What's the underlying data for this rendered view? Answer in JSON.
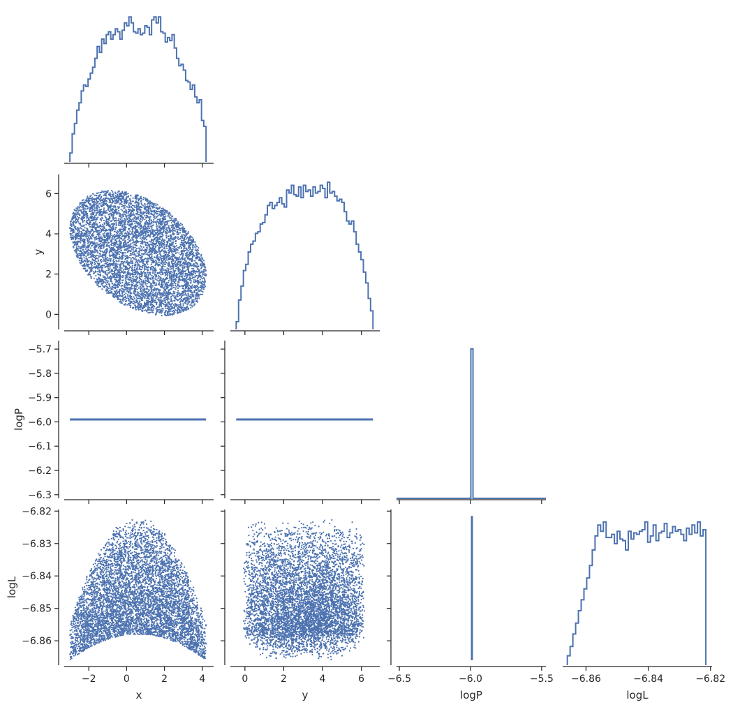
{
  "chart_data": {
    "type": "corner-pairplot",
    "variables": [
      "x",
      "y",
      "logP",
      "logL"
    ],
    "series_color": "#4c72b0",
    "axis_color": "#262626",
    "axes": {
      "x": {
        "label": "x",
        "range": [
          -3.3,
          4.6
        ],
        "ticks": [
          -2,
          0,
          2,
          4
        ],
        "tick_labels": [
          "−2",
          "0",
          "2",
          "4"
        ]
      },
      "y": {
        "label": "y",
        "range": [
          -0.75,
          6.95
        ],
        "ticks": [
          0,
          2,
          4,
          6
        ],
        "tick_labels": [
          "0",
          "2",
          "4",
          "6"
        ]
      },
      "logP": {
        "label": "logP",
        "range": [
          -6.315,
          -5.665
        ],
        "ticks": [
          -5.7,
          -5.8,
          -5.9,
          -6.0,
          -6.1,
          -6.2,
          -6.3
        ],
        "tick_labels": [
          "−5.7",
          "−5.8",
          "−5.9",
          "−6.0",
          "−6.1",
          "−6.2",
          "−6.3"
        ],
        "diag_range": [
          -6.52,
          -5.47
        ],
        "diag_ticks": [
          -6.5,
          -6.0,
          -5.5
        ],
        "diag_tick_labels": [
          "−6.5",
          "−6.0",
          "−5.5"
        ]
      },
      "logL": {
        "label": "logL",
        "range": [
          -6.8675,
          -6.8195
        ],
        "ticks": [
          -6.82,
          -6.83,
          -6.84,
          -6.85,
          -6.86
        ],
        "tick_labels": [
          "−6.82",
          "−6.83",
          "−6.84",
          "−6.85",
          "−6.86"
        ],
        "diag_ticks": [
          -6.86,
          -6.84,
          -6.82
        ],
        "diag_tick_labels": [
          "−6.86",
          "−6.84",
          "−6.82"
        ]
      }
    },
    "samples": {
      "count": 6000,
      "distribution": "uniform within ellipse",
      "ellipse_center": [
        0.6,
        3.05
      ],
      "x_range": [
        -3.0,
        4.2
      ],
      "y_range": [
        -0.45,
        6.6
      ],
      "logP_constant": -5.99,
      "logL_range": [
        -6.866,
        -6.8215
      ]
    },
    "histograms": {
      "x": {
        "bin_edges": [
          -3.0,
          4.2
        ],
        "counts": [
          0.06,
          0.19,
          0.26,
          0.35,
          0.4,
          0.48,
          0.52,
          0.51,
          0.56,
          0.6,
          0.64,
          0.7,
          0.78,
          0.74,
          0.83,
          0.8,
          0.86,
          0.88,
          0.83,
          0.86,
          0.9,
          0.88,
          0.83,
          0.89,
          0.94,
          0.92,
          0.98,
          0.94,
          0.88,
          0.87,
          0.9,
          0.86,
          0.87,
          0.92,
          0.91,
          0.86,
          0.96,
          0.98,
          0.94,
          0.98,
          0.88,
          0.87,
          0.81,
          0.84,
          0.82,
          0.86,
          0.77,
          0.7,
          0.65,
          0.66,
          0.62,
          0.55,
          0.54,
          0.49,
          0.52,
          0.44,
          0.4,
          0.42,
          0.28,
          0.24
        ]
      },
      "y": {
        "bin_edges": [
          -0.45,
          6.6
        ],
        "counts": [
          0.05,
          0.19,
          0.28,
          0.38,
          0.42,
          0.5,
          0.55,
          0.57,
          0.62,
          0.63,
          0.68,
          0.69,
          0.74,
          0.8,
          0.82,
          0.78,
          0.8,
          0.82,
          0.85,
          0.81,
          0.79,
          0.9,
          0.88,
          0.93,
          0.87,
          0.86,
          0.92,
          0.85,
          0.93,
          0.89,
          0.9,
          0.86,
          0.92,
          0.88,
          0.89,
          0.93,
          0.91,
          0.85,
          0.95,
          0.88,
          0.89,
          0.86,
          0.83,
          0.84,
          0.82,
          0.76,
          0.7,
          0.68,
          0.7,
          0.63,
          0.55,
          0.5,
          0.45,
          0.37,
          0.3,
          0.2,
          0.12
        ]
      },
      "logP": {
        "spike_at": -5.99
      },
      "logL": {
        "bin_edges": [
          -6.866,
          -6.8215
        ],
        "counts": [
          0.06,
          0.12,
          0.2,
          0.27,
          0.35,
          0.42,
          0.49,
          0.56,
          0.64,
          0.74,
          0.83,
          0.9,
          0.86,
          0.92,
          0.82,
          0.82,
          0.84,
          0.78,
          0.86,
          0.81,
          0.8,
          0.74,
          0.86,
          0.81,
          0.85,
          0.84,
          0.86,
          0.87,
          0.92,
          0.79,
          0.83,
          0.9,
          0.8,
          0.85,
          0.86,
          0.91,
          0.82,
          0.85,
          0.89,
          0.86,
          0.87,
          0.84,
          0.8,
          0.88,
          0.84,
          0.9,
          0.85,
          0.92,
          0.83,
          0.87
        ]
      }
    }
  }
}
